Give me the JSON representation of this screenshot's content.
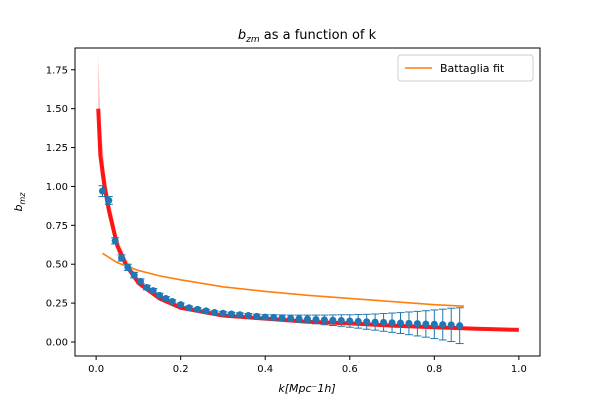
{
  "chart_data": {
    "type": "scatter",
    "title": "b_zm as a function of k",
    "title_parts": {
      "symbol": "b",
      "subscript": "zm",
      "rest": " as a function of k"
    },
    "xlabel": "k[Mpc⁻1h]",
    "ylabel": "b_mz",
    "ylabel_parts": {
      "symbol": "b",
      "subscript": "mz"
    },
    "xlim": [
      -0.05,
      1.05
    ],
    "ylim": [
      -0.09,
      1.89
    ],
    "xticks": [
      0.0,
      0.2,
      0.4,
      0.6,
      0.8,
      1.0
    ],
    "xtick_labels": [
      "0.0",
      "0.2",
      "0.4",
      "0.6",
      "0.8",
      "1.0"
    ],
    "yticks": [
      0.0,
      0.25,
      0.5,
      0.75,
      1.0,
      1.25,
      1.5,
      1.75
    ],
    "ytick_labels": [
      "0.00",
      "0.25",
      "0.50",
      "0.75",
      "1.00",
      "1.25",
      "1.50",
      "1.75"
    ],
    "grid": false,
    "legend": {
      "position": "top-right",
      "entries": [
        {
          "label": "Battaglia fit",
          "color": "#ff7f0e"
        }
      ]
    },
    "series": [
      {
        "name": "Battaglia fit",
        "type": "line",
        "color": "#ff7f0e",
        "x": [
          0.015,
          0.05,
          0.1,
          0.15,
          0.2,
          0.3,
          0.4,
          0.5,
          0.6,
          0.7,
          0.8,
          0.87
        ],
        "y": [
          0.57,
          0.51,
          0.46,
          0.425,
          0.4,
          0.355,
          0.325,
          0.3,
          0.28,
          0.26,
          0.24,
          0.23
        ]
      },
      {
        "type": "band",
        "color": "#ff0000",
        "x": [
          0.005,
          0.01,
          0.02,
          0.03,
          0.05,
          0.07,
          0.1,
          0.15,
          0.2,
          0.3,
          0.4,
          0.5,
          0.6,
          0.7,
          0.8,
          0.9,
          1.0
        ],
        "y": [
          1.5,
          1.2,
          1.0,
          0.85,
          0.62,
          0.5,
          0.38,
          0.28,
          0.22,
          0.17,
          0.15,
          0.13,
          0.12,
          0.105,
          0.095,
          0.085,
          0.078
        ],
        "upper": [
          1.85,
          1.45,
          1.1,
          0.93,
          0.67,
          0.54,
          0.41,
          0.3,
          0.235,
          0.182,
          0.158,
          0.138,
          0.127,
          0.111,
          0.1,
          0.089,
          0.082
        ],
        "lower": [
          1.3,
          1.08,
          0.92,
          0.79,
          0.58,
          0.47,
          0.36,
          0.265,
          0.21,
          0.16,
          0.143,
          0.124,
          0.114,
          0.1,
          0.09,
          0.081,
          0.074
        ]
      },
      {
        "type": "errorbar",
        "color": "#1f77b4",
        "x": [
          0.015,
          0.03,
          0.045,
          0.06,
          0.075,
          0.09,
          0.105,
          0.12,
          0.135,
          0.15,
          0.165,
          0.18,
          0.2,
          0.22,
          0.24,
          0.26,
          0.28,
          0.3,
          0.32,
          0.34,
          0.36,
          0.38,
          0.4,
          0.42,
          0.44,
          0.46,
          0.48,
          0.5,
          0.52,
          0.54,
          0.56,
          0.58,
          0.6,
          0.62,
          0.64,
          0.66,
          0.68,
          0.7,
          0.72,
          0.74,
          0.76,
          0.78,
          0.8,
          0.82,
          0.84,
          0.86
        ],
        "y": [
          0.97,
          0.91,
          0.65,
          0.54,
          0.48,
          0.43,
          0.39,
          0.35,
          0.33,
          0.3,
          0.28,
          0.26,
          0.24,
          0.22,
          0.21,
          0.2,
          0.19,
          0.185,
          0.18,
          0.175,
          0.17,
          0.165,
          0.16,
          0.158,
          0.155,
          0.152,
          0.15,
          0.148,
          0.145,
          0.142,
          0.14,
          0.138,
          0.135,
          0.133,
          0.13,
          0.128,
          0.126,
          0.124,
          0.122,
          0.12,
          0.118,
          0.116,
          0.114,
          0.112,
          0.11,
          0.105
        ],
        "yerr": [
          0.035,
          0.025,
          0.02,
          0.02,
          0.02,
          0.018,
          0.016,
          0.015,
          0.014,
          0.013,
          0.012,
          0.012,
          0.011,
          0.011,
          0.01,
          0.01,
          0.01,
          0.01,
          0.011,
          0.012,
          0.013,
          0.014,
          0.015,
          0.017,
          0.019,
          0.021,
          0.023,
          0.025,
          0.028,
          0.031,
          0.034,
          0.037,
          0.04,
          0.044,
          0.048,
          0.052,
          0.057,
          0.062,
          0.067,
          0.073,
          0.079,
          0.085,
          0.092,
          0.099,
          0.107,
          0.115
        ]
      }
    ]
  }
}
